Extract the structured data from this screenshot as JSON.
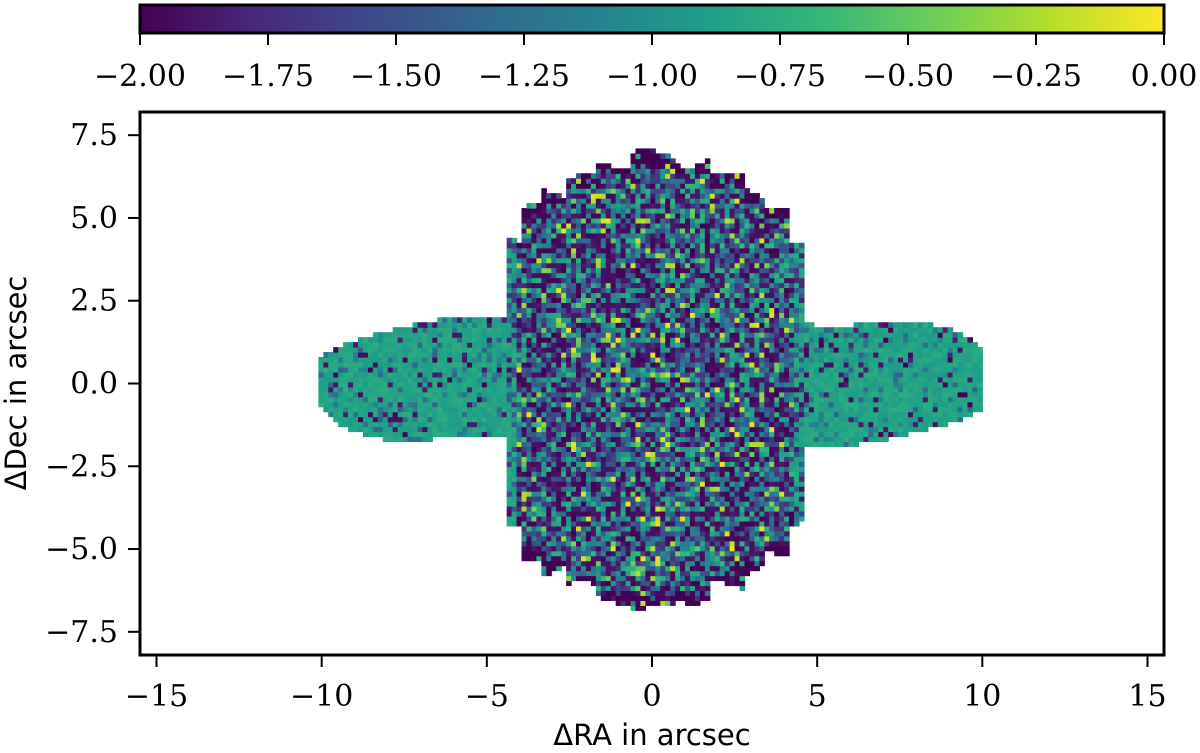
{
  "chart_data": {
    "type": "heatmap",
    "title": "",
    "xlabel": "ΔRA in arcsec",
    "ylabel": "ΔDec in arcsec",
    "xlim": [
      -15.5,
      15.5
    ],
    "ylim": [
      -8.2,
      8.2
    ],
    "x_ticks": [
      -15,
      -10,
      -5,
      0,
      5,
      10,
      15
    ],
    "x_tick_labels": [
      "−15",
      "−10",
      "−5",
      "0",
      "5",
      "10",
      "15"
    ],
    "y_ticks": [
      7.5,
      5.0,
      2.5,
      0.0,
      -2.5,
      -5.0,
      -7.5
    ],
    "y_tick_labels": [
      "7.5",
      "5.0",
      "2.5",
      "0.0",
      "−2.5",
      "−5.0",
      "−7.5"
    ],
    "colorbar": {
      "orientation": "horizontal",
      "placement": "top",
      "colormap": "viridis",
      "range": [
        -2.0,
        0.0
      ],
      "ticks": [
        -2.0,
        -1.75,
        -1.5,
        -1.25,
        -1.0,
        -0.75,
        -0.5,
        -0.25,
        0.0
      ],
      "tick_labels": [
        "−2.00",
        "−1.75",
        "−1.50",
        "−1.25",
        "−1.00",
        "−0.75",
        "−0.50",
        "−0.25",
        "0.00"
      ]
    },
    "grid": false,
    "structure": {
      "central_lobed_region": {
        "x_range": [
          -4.5,
          4.5
        ],
        "y_range": [
          -6.9,
          7.0
        ],
        "typical_value_range": [
          -2.0,
          -0.3
        ]
      },
      "horizontal_disk": {
        "x_range": [
          -10.2,
          10.0
        ],
        "y_range": [
          -2.0,
          1.8
        ],
        "typical_value": -0.85
      }
    },
    "colors": [
      "#440154",
      "#482878",
      "#3e4989",
      "#31688e",
      "#26828e",
      "#1f9e89",
      "#35b779",
      "#6ece58",
      "#b5de2b",
      "#fde725"
    ]
  }
}
